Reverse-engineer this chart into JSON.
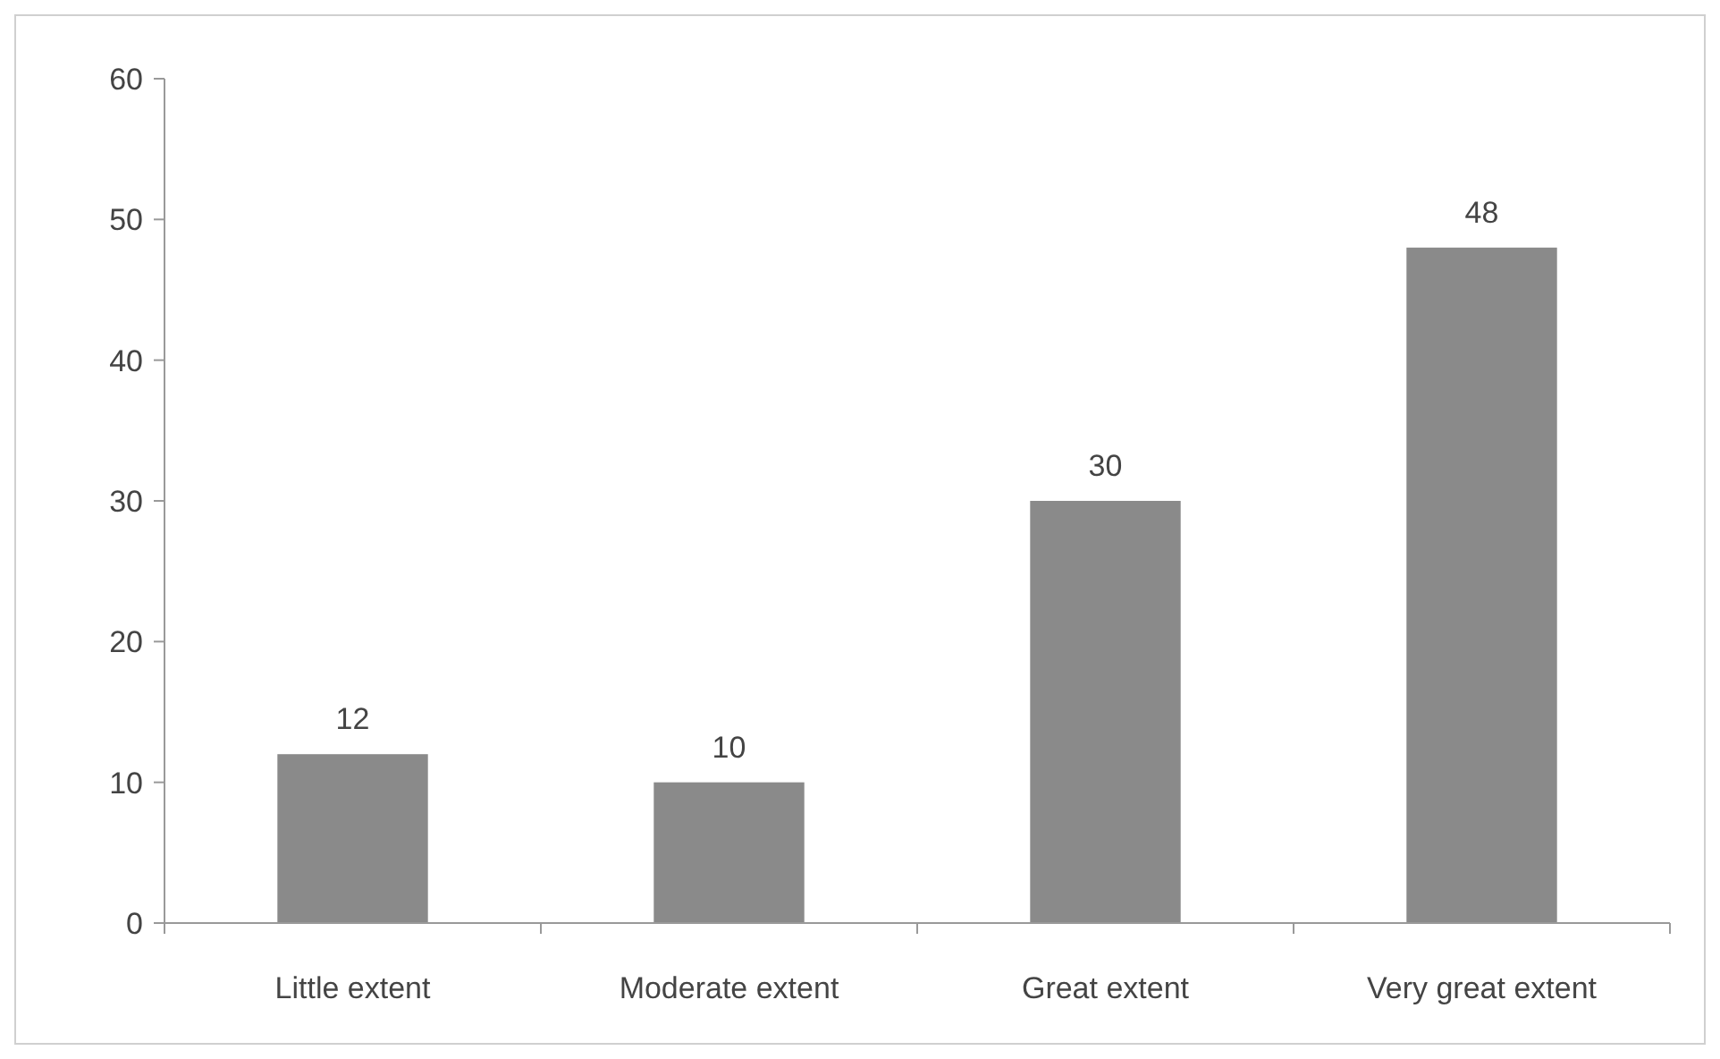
{
  "chart_data": {
    "type": "bar",
    "categories": [
      "Little extent",
      "Moderate extent",
      "Great extent",
      "Very great extent"
    ],
    "values": [
      12,
      10,
      30,
      48
    ],
    "color": "#8a8a8a",
    "ylim": [
      0,
      60
    ],
    "yticks": [
      0,
      10,
      20,
      30,
      40,
      50,
      60
    ],
    "data_labels": true,
    "grid": false
  }
}
